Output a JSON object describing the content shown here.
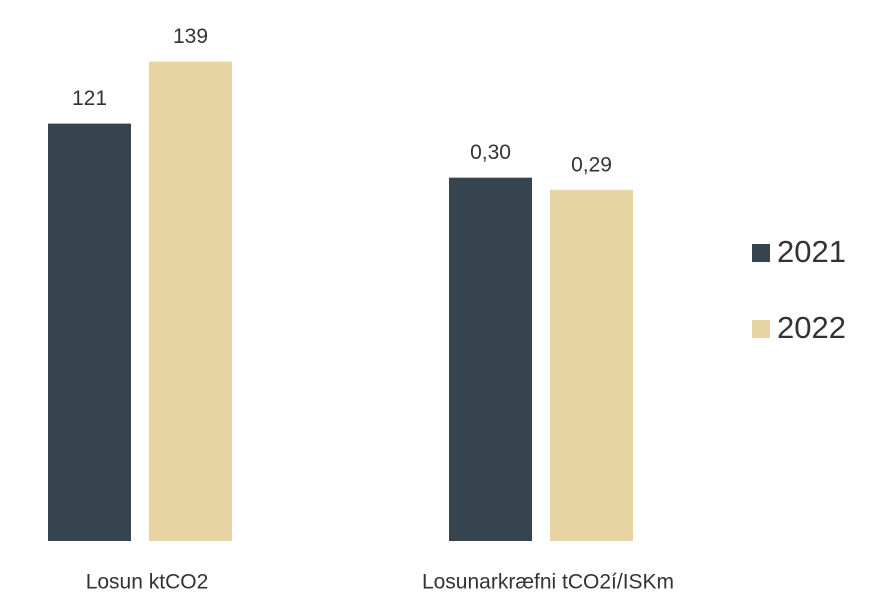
{
  "chart_data": [
    {
      "type": "bar",
      "categories": [
        "Losun ktCO2"
      ],
      "ylim": [
        0,
        158
      ],
      "series": [
        {
          "name": "2021",
          "color": "#36444f",
          "values": [
            121
          ]
        },
        {
          "name": "2022",
          "color": "#e8d4a2",
          "values": [
            139
          ]
        }
      ]
    },
    {
      "type": "bar",
      "categories": [
        "Losunarkræfni tCO2í/ISKm"
      ],
      "ylim": [
        0,
        0.45
      ],
      "series": [
        {
          "color": "#36444f",
          "values": [
            0.3
          ],
          "value_labels": [
            "0,30"
          ]
        },
        {
          "color": "#e8d4a2",
          "values": [
            0.29
          ],
          "value_labels": [
            "0,29"
          ]
        }
      ]
    }
  ]
}
